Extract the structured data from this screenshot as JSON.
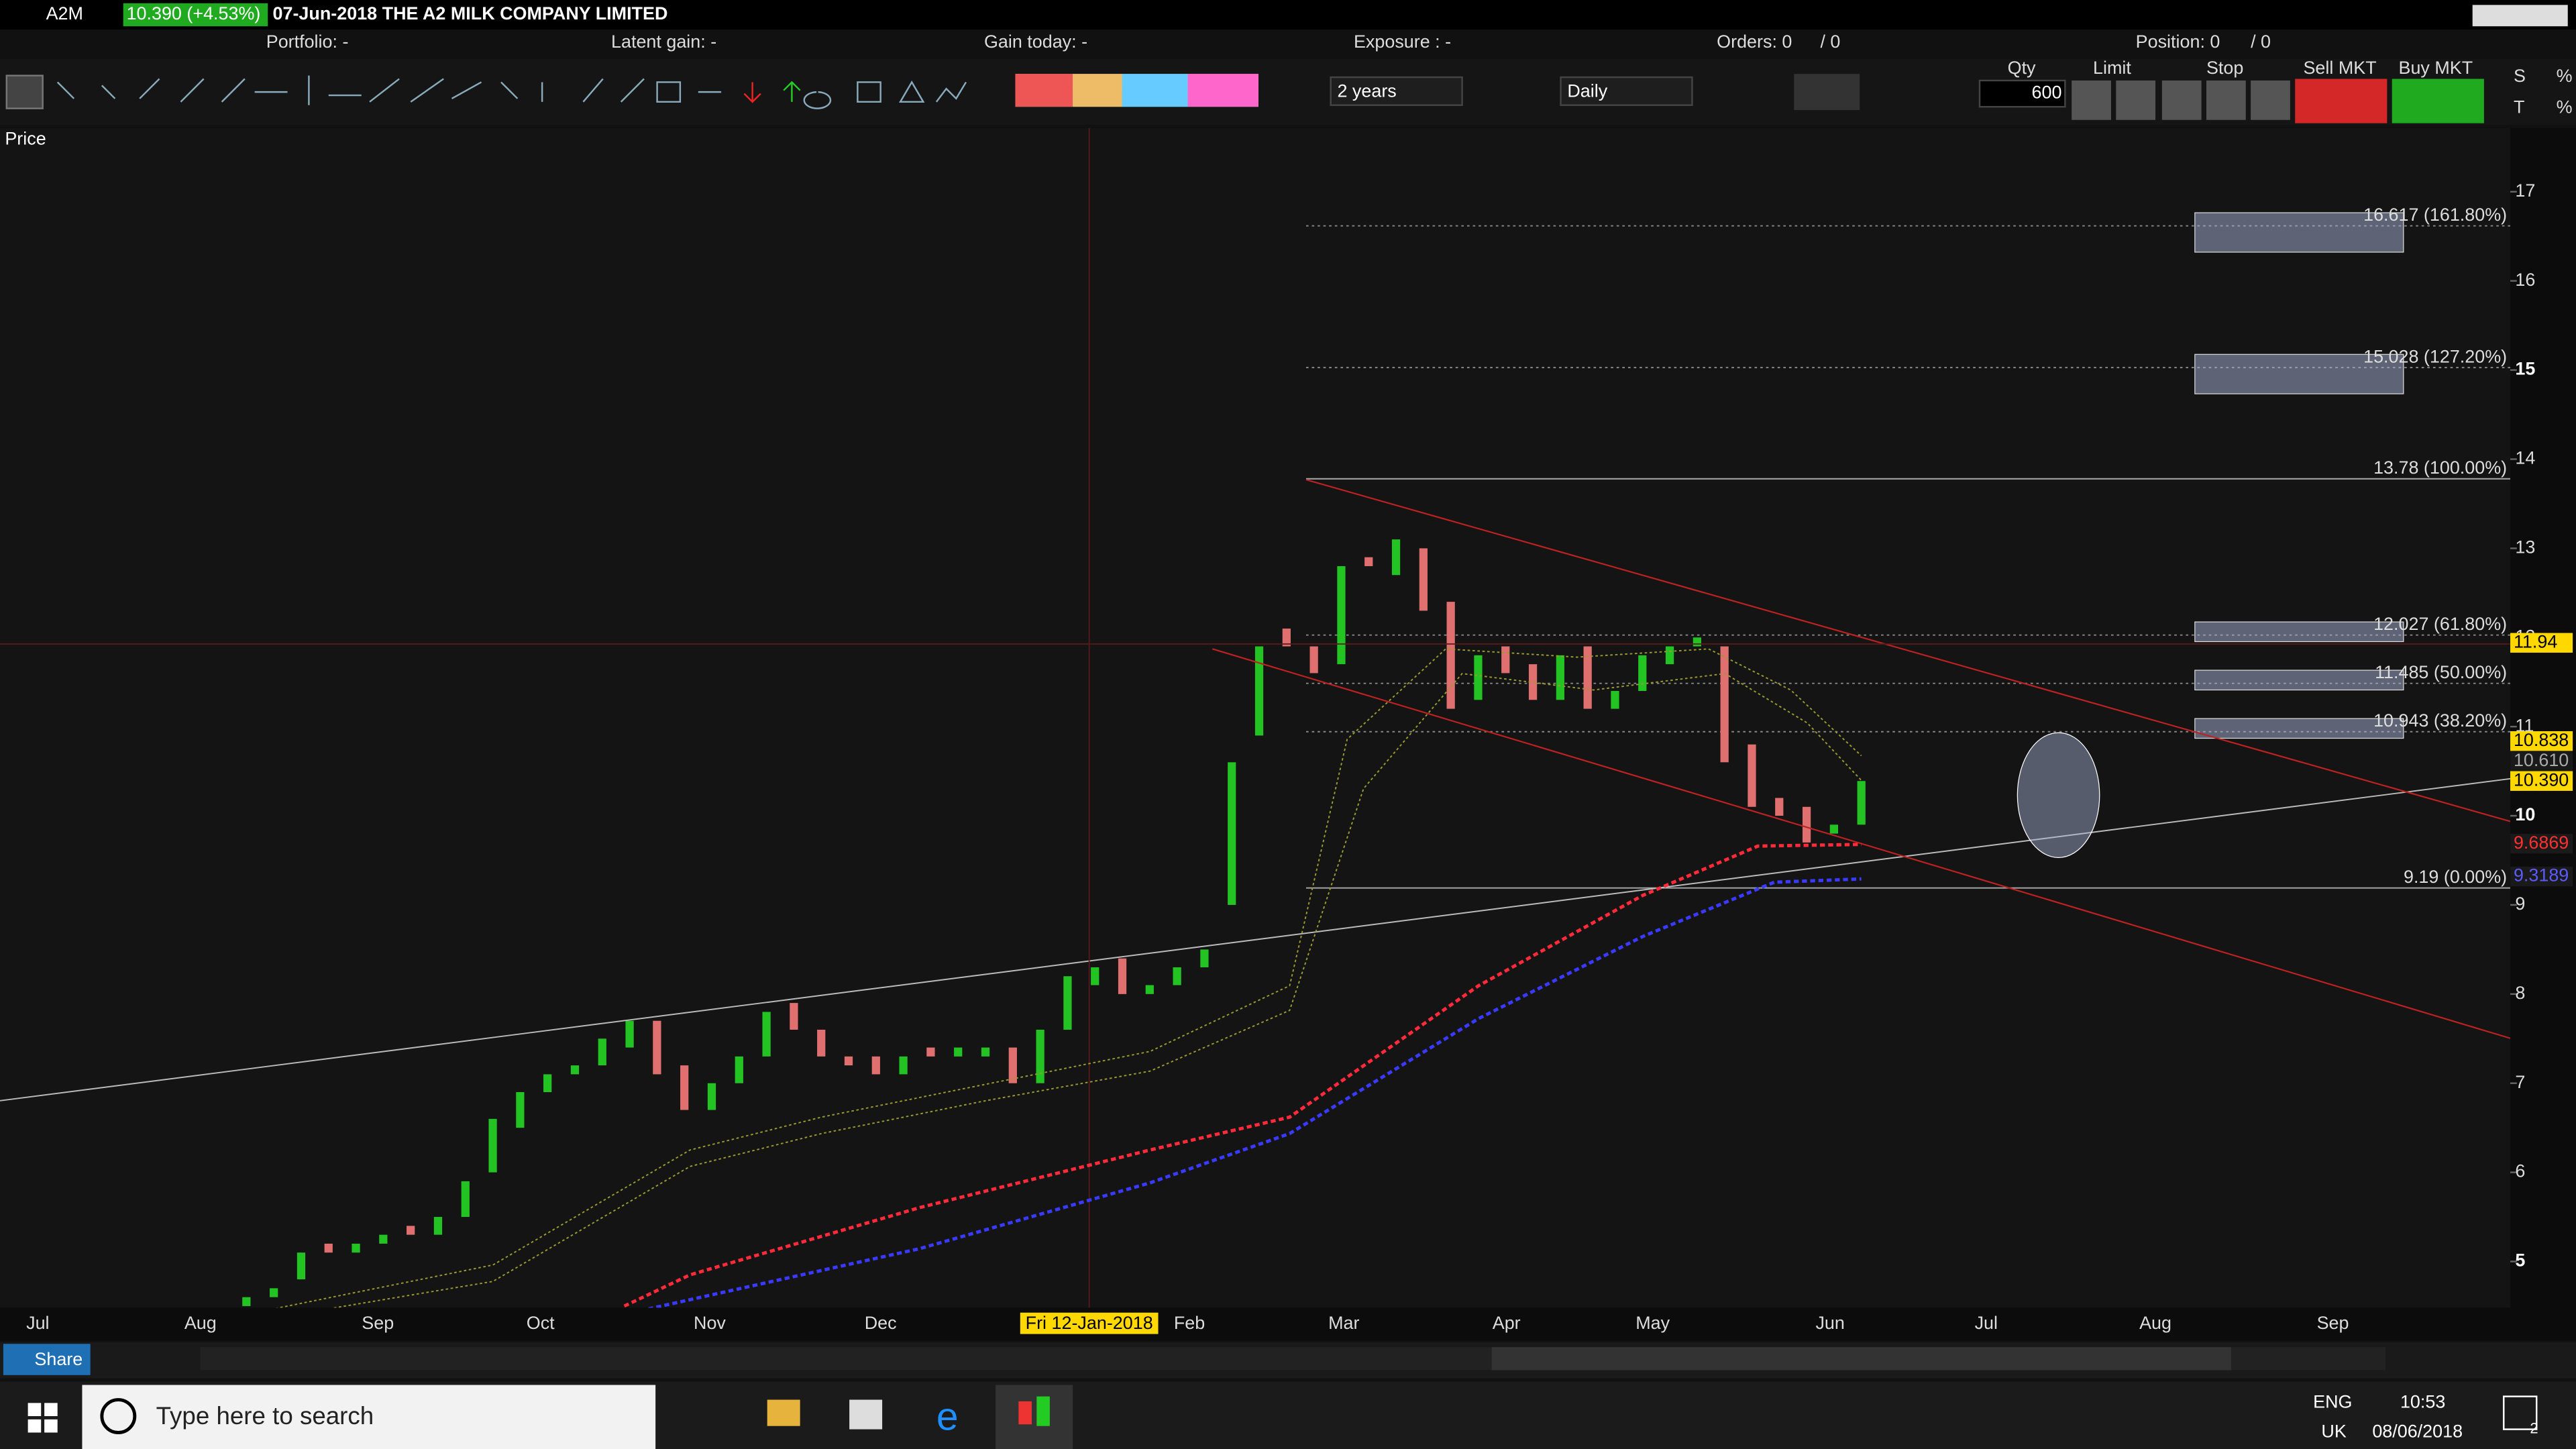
{
  "header": {
    "symbol": "A2M",
    "quote": "10.390 (+4.53%)",
    "name": "07-Jun-2018 THE A2 MILK COMPANY LIMITED",
    "portfolio": "Portfolio: -",
    "latent_gain": "Latent gain: -",
    "gain_today": "Gain today: -",
    "exposure": "Exposure : -",
    "orders": "Orders: 0",
    "orders_b": "/ 0",
    "position": "Position: 0",
    "position_b": "/ 0"
  },
  "toolbar": {
    "period": "2 years",
    "interval": "Daily",
    "qty_label": "Qty",
    "qty": "600",
    "limit": "Limit",
    "stop": "Stop",
    "sell": "Sell MKT",
    "buy": "Buy MKT",
    "s": "S",
    "t": "T",
    "pct": "%"
  },
  "chart_data": {
    "type": "candlestick",
    "panel_label": "Price",
    "ylim": [
      4.5,
      17.4
    ],
    "yticks": [
      5,
      6,
      7,
      8,
      9,
      10,
      11,
      12,
      13,
      14,
      15,
      16,
      17
    ],
    "x_labels": [
      "Jul",
      "Aug",
      "Sep",
      "Oct",
      "Nov",
      "Dec",
      "Feb",
      "Mar",
      "Apr",
      "May",
      "Jun",
      "Jul",
      "Aug",
      "Sep"
    ],
    "crosshair_label": "Fri 12-Jan-2018",
    "series": {
      "open": [
        4.5,
        4.6,
        4.8,
        5.2,
        5.1,
        5.2,
        5.4,
        5.3,
        5.5,
        6.0,
        6.5,
        6.9,
        7.1,
        7.2,
        7.4,
        7.7,
        7.2,
        6.7,
        7.0,
        7.3,
        7.9,
        7.6,
        7.3,
        7.3,
        7.1,
        7.4,
        7.3,
        7.3,
        7.4,
        7.0,
        7.6,
        8.1,
        8.4,
        8.0,
        8.1,
        8.3,
        9.0,
        10.9,
        12.1,
        11.9,
        11.7,
        12.9,
        12.7,
        13.0,
        12.4,
        11.3,
        11.9,
        11.7,
        11.3,
        11.9,
        11.2,
        11.4,
        11.7,
        11.9,
        11.9,
        10.8,
        10.2,
        10.1,
        9.8,
        9.9
      ],
      "close": [
        4.6,
        4.7,
        5.1,
        5.1,
        5.2,
        5.3,
        5.3,
        5.5,
        5.9,
        6.6,
        6.9,
        7.1,
        7.2,
        7.5,
        7.7,
        7.1,
        6.7,
        7.0,
        7.3,
        7.8,
        7.6,
        7.3,
        7.2,
        7.1,
        7.3,
        7.3,
        7.4,
        7.4,
        7.0,
        7.6,
        8.2,
        8.3,
        8.0,
        8.1,
        8.3,
        8.5,
        10.6,
        11.9,
        11.9,
        11.6,
        12.8,
        12.8,
        13.1,
        12.3,
        11.2,
        11.8,
        11.6,
        11.3,
        11.8,
        11.2,
        11.4,
        11.8,
        11.9,
        12.0,
        10.6,
        10.1,
        10.0,
        9.7,
        9.9,
        10.39
      ]
    },
    "up_color": "#22c322",
    "down_color": "#e07070",
    "fib_levels": [
      {
        "value": 16.617,
        "label": "16.617 (161.80%)"
      },
      {
        "value": 15.028,
        "label": "15.028 (127.20%)"
      },
      {
        "value": 13.78,
        "label": "13.78 (100.00%)"
      },
      {
        "value": 12.027,
        "label": "12.027 (61.80%)"
      },
      {
        "value": 11.485,
        "label": "11.485 (50.00%)"
      },
      {
        "value": 10.943,
        "label": "10.943 (38.20%)"
      },
      {
        "value": 9.19,
        "label": "9.19 (0.00%)"
      }
    ],
    "price_tags": [
      {
        "value": 11.94,
        "label": "11.94",
        "bg": "#ffd800",
        "fg": "#000000"
      },
      {
        "value": 10.838,
        "label": "10.838",
        "bg": "#ffd800",
        "fg": "#000000"
      },
      {
        "value": 10.61,
        "label": "10.610",
        "bg": "#1a1a1a",
        "fg": "#aaaaaa"
      },
      {
        "value": 10.39,
        "label": "10.390",
        "bg": "#ffd800",
        "fg": "#000000"
      },
      {
        "value": 9.6869,
        "label": "9.6869",
        "bg": "#1a1a1a",
        "fg": "#ff3030"
      },
      {
        "value": 9.3189,
        "label": "9.3189",
        "bg": "#1a1a1a",
        "fg": "#5a5aff"
      }
    ]
  },
  "statusbar": {
    "share": "Share"
  },
  "taskbar": {
    "search": "Type here to search",
    "lang": "ENG",
    "region": "UK",
    "time": "10:53",
    "date": "08/06/2018",
    "notifications": "2"
  }
}
